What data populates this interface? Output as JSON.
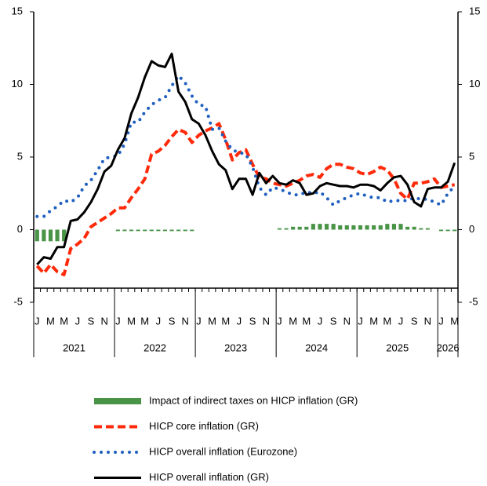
{
  "chart_data": {
    "type": "line",
    "categories": [
      "J",
      null,
      "M",
      null,
      "M",
      null,
      "J",
      null,
      "S",
      null,
      "N",
      null,
      "J",
      null,
      "M",
      null,
      "M",
      null,
      "J",
      null,
      "S",
      null,
      "N",
      null,
      "J",
      null,
      "M",
      null,
      "M",
      null,
      "J",
      null,
      "S",
      null,
      "N",
      null,
      "J",
      null,
      "M",
      null,
      "M",
      null,
      "J",
      null,
      "S",
      null,
      "N",
      null,
      "J",
      null,
      "M",
      null,
      "M",
      null,
      "J",
      null,
      "S",
      null,
      "N",
      null,
      "J",
      null,
      "M"
    ],
    "years": [
      "2021",
      "2022",
      "2023",
      "2024",
      "2025",
      "2026"
    ],
    "ylim": [
      -5,
      15
    ],
    "yticks": [
      -5,
      0,
      5,
      10,
      15
    ],
    "y2lim": [
      -5,
      15
    ],
    "y2ticks": [
      -5,
      0,
      5,
      10,
      15
    ],
    "series": [
      {
        "name": "Impact of indirect taxes on HICP inflation (GR)",
        "style": "bar",
        "color": "#4a9447",
        "values": [
          -0.8,
          -0.8,
          -0.8,
          -0.8,
          -0.8,
          0,
          0,
          0,
          0,
          0,
          0,
          0,
          -0.1,
          -0.1,
          -0.1,
          -0.1,
          -0.1,
          -0.1,
          -0.1,
          -0.1,
          -0.1,
          -0.1,
          -0.1,
          -0.1,
          0,
          0,
          0,
          0,
          0,
          0,
          0,
          0,
          0,
          0,
          0,
          0,
          0.1,
          0.1,
          0.2,
          0.2,
          0.2,
          0.4,
          0.4,
          0.4,
          0.4,
          0.3,
          0.3,
          0.3,
          0.3,
          0.3,
          0.3,
          0.3,
          0.4,
          0.4,
          0.4,
          0.2,
          0.2,
          0.1,
          0.1,
          0,
          -0.1,
          -0.1,
          -0.1
        ]
      },
      {
        "name": "HICP core inflation (GR)",
        "style": "dashed",
        "color": "#ff2a0a",
        "values": [
          -2.5,
          -3.0,
          -2.4,
          -2.9,
          -3.1,
          -1.3,
          -1.0,
          -0.6,
          0.2,
          0.5,
          0.8,
          1.1,
          1.5,
          1.5,
          2.2,
          2.8,
          3.5,
          5.2,
          5.4,
          5.8,
          6.4,
          6.9,
          6.7,
          6.0,
          6.5,
          6.8,
          7.0,
          7.3,
          6.2,
          4.8,
          5.3,
          5.5,
          4.5,
          3.6,
          3.5,
          3.2,
          3.1,
          3.0,
          3.2,
          3.4,
          3.7,
          3.8,
          3.6,
          4.2,
          4.5,
          4.5,
          4.3,
          4.2,
          3.9,
          3.8,
          4.0,
          4.3,
          4.1,
          3.5,
          2.5,
          2.1,
          3.2,
          3.2,
          3.3,
          3.5,
          2.9,
          3.0,
          3.1
        ]
      },
      {
        "name": "HICP overall inflation (Eurozone)",
        "style": "dotted",
        "color": "#1f5fbf",
        "values": [
          0.9,
          0.9,
          1.3,
          1.6,
          2.0,
          1.9,
          2.2,
          3.0,
          3.4,
          4.1,
          4.9,
          5.0,
          5.1,
          5.9,
          7.4,
          7.4,
          8.1,
          8.6,
          8.9,
          9.1,
          9.9,
          10.6,
          10.1,
          9.2,
          8.6,
          8.5,
          6.9,
          7.0,
          6.1,
          5.5,
          5.3,
          5.2,
          4.3,
          2.9,
          2.4,
          2.9,
          2.8,
          2.6,
          2.4,
          2.4,
          2.6,
          2.5,
          2.6,
          2.2,
          1.7,
          2.0,
          2.2,
          2.4,
          2.5,
          2.3,
          2.2,
          2.2,
          1.9,
          2.0,
          2.0,
          2.0,
          2.2,
          2.1,
          2.1,
          1.9,
          1.7,
          2.5,
          3.0
        ]
      },
      {
        "name": "HICP overall inflation (GR)",
        "style": "solid",
        "color": "#000000",
        "values": [
          -2.4,
          -1.9,
          -2.0,
          -1.2,
          -1.2,
          0.6,
          0.7,
          1.2,
          1.9,
          2.8,
          4.0,
          4.4,
          5.5,
          6.3,
          8.0,
          9.1,
          10.5,
          11.6,
          11.3,
          11.2,
          12.1,
          9.5,
          8.8,
          7.6,
          7.3,
          6.5,
          5.4,
          4.5,
          4.1,
          2.8,
          3.5,
          3.5,
          2.4,
          3.9,
          3.2,
          3.7,
          3.2,
          3.1,
          3.4,
          3.2,
          2.4,
          2.5,
          3.0,
          3.2,
          3.1,
          3.0,
          3.0,
          2.9,
          3.1,
          3.1,
          3.0,
          2.7,
          3.2,
          3.6,
          3.7,
          3.1,
          1.9,
          1.6,
          2.8,
          2.9,
          2.9,
          3.3,
          4.6
        ]
      }
    ]
  }
}
